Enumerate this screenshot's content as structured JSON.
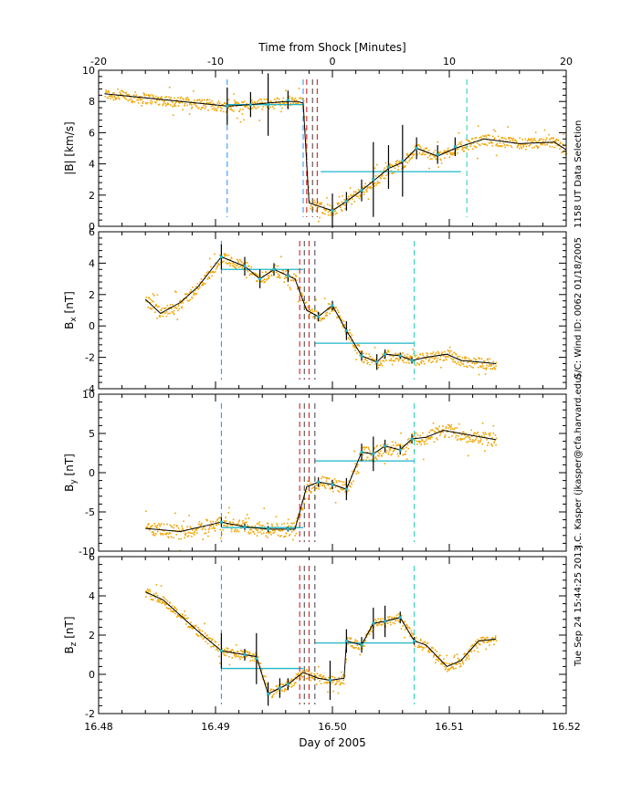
{
  "figure": {
    "top_axis_title": "Time from Shock [Minutes]",
    "bottom_axis_title": "Day of 2005",
    "side_annotations": [
      "1158 UT Data Selection",
      "S/C: Wind ID: 0062 01/18/2005",
      "J.C. Kasper (jkasper@cfa.harvard.edu)",
      "Tue Sep 24 15:44:25 2013"
    ]
  },
  "colors": {
    "raw": "#f0a500",
    "fit": "#000000",
    "region": "#1fb6c8",
    "upstream_marker": "#1e90ff",
    "downstream_marker": "#1fd0b0",
    "shock_red": "#d42020",
    "shock_dark": "#505050"
  },
  "chart_data": [
    {
      "type": "line",
      "panel": "speed",
      "ylabel": "|B| [km/s]",
      "ylim": [
        0,
        10
      ],
      "yticks": [
        0,
        2,
        4,
        6,
        8,
        10
      ],
      "xlim": [
        16.48,
        16.52
      ],
      "top_xlim": [
        -20,
        20
      ],
      "top_xticks": [
        -20,
        -10,
        0,
        10,
        20
      ],
      "fit_series": [
        [
          16.4805,
          8.5
        ],
        [
          16.491,
          7.7
        ],
        [
          16.493,
          7.8
        ],
        [
          16.4945,
          7.9
        ],
        [
          16.496,
          8.0
        ],
        [
          16.497,
          8.0
        ],
        [
          16.4975,
          7.9
        ],
        [
          16.498,
          1.5
        ],
        [
          16.5,
          1.0
        ],
        [
          16.5012,
          1.6
        ],
        [
          16.5025,
          2.3
        ],
        [
          16.5035,
          2.9
        ],
        [
          16.5048,
          3.7
        ],
        [
          16.506,
          4.1
        ],
        [
          16.5072,
          5.0
        ],
        [
          16.509,
          4.5
        ],
        [
          16.5105,
          5.0
        ],
        [
          16.513,
          5.6
        ],
        [
          16.516,
          5.3
        ],
        [
          16.519,
          5.4
        ],
        [
          16.52,
          4.9
        ]
      ],
      "error_bars": [
        [
          16.491,
          7.7,
          1.2
        ],
        [
          16.493,
          7.8,
          0.8
        ],
        [
          16.4945,
          7.8,
          2.0
        ],
        [
          16.4962,
          8.1,
          0.6
        ],
        [
          16.5,
          1.0,
          1.1
        ],
        [
          16.5012,
          1.6,
          0.6
        ],
        [
          16.5025,
          2.3,
          0.7
        ],
        [
          16.5035,
          3.0,
          2.4
        ],
        [
          16.5048,
          3.8,
          1.4
        ],
        [
          16.506,
          4.2,
          2.3
        ],
        [
          16.5072,
          5.0,
          0.7
        ],
        [
          16.509,
          4.6,
          0.6
        ],
        [
          16.5105,
          5.1,
          0.6
        ]
      ],
      "upstream_region": {
        "x": [
          16.491,
          16.4975
        ],
        "value": 7.8
      },
      "downstream_region": {
        "x": [
          16.499,
          16.511
        ],
        "value": 3.5
      },
      "upstream_markers": [
        16.491,
        16.4975
      ],
      "downstream_markers": [
        16.5115
      ],
      "shock_markers": {
        "red": [
          16.4978,
          16.4987
        ],
        "dark": [
          16.4983
        ]
      },
      "raw_noise": 0.35
    },
    {
      "type": "line",
      "panel": "bx",
      "ylabel": "Bx [nT]",
      "ylabel_main": "B",
      "ylabel_sub": "x",
      "ylabel_unit": " [nT]",
      "ylim": [
        -4,
        6
      ],
      "yticks": [
        -4,
        -2,
        0,
        2,
        4,
        6
      ],
      "xlim": [
        16.48,
        16.52
      ],
      "fit_series": [
        [
          16.484,
          1.7
        ],
        [
          16.4853,
          0.8
        ],
        [
          16.487,
          1.5
        ],
        [
          16.4885,
          2.5
        ],
        [
          16.4905,
          4.4
        ],
        [
          16.4925,
          3.8
        ],
        [
          16.4938,
          3.0
        ],
        [
          16.495,
          3.6
        ],
        [
          16.4962,
          3.2
        ],
        [
          16.4968,
          3.0
        ],
        [
          16.4978,
          1.0
        ],
        [
          16.4988,
          0.6
        ],
        [
          16.5,
          1.3
        ],
        [
          16.5012,
          -0.3
        ],
        [
          16.5025,
          -1.9
        ],
        [
          16.5038,
          -2.3
        ],
        [
          16.5045,
          -1.8
        ],
        [
          16.5058,
          -1.9
        ],
        [
          16.5068,
          -2.2
        ],
        [
          16.508,
          -2.0
        ],
        [
          16.5098,
          -1.8
        ],
        [
          16.511,
          -2.2
        ],
        [
          16.514,
          -2.4
        ]
      ],
      "error_bars": [
        [
          16.4905,
          4.4,
          0.8
        ],
        [
          16.4925,
          3.8,
          0.6
        ],
        [
          16.4938,
          3.0,
          0.6
        ],
        [
          16.495,
          3.6,
          0.4
        ],
        [
          16.4962,
          3.2,
          0.4
        ],
        [
          16.4988,
          0.6,
          0.3
        ],
        [
          16.5,
          1.3,
          0.3
        ],
        [
          16.5012,
          -0.3,
          0.6
        ],
        [
          16.5025,
          -1.9,
          0.3
        ],
        [
          16.5038,
          -2.3,
          0.5
        ],
        [
          16.5045,
          -1.8,
          0.3
        ],
        [
          16.5058,
          -1.9,
          0.2
        ],
        [
          16.5068,
          -2.2,
          0.2
        ]
      ],
      "upstream_region": {
        "x": [
          16.4905,
          16.4975
        ],
        "value": 3.6
      },
      "downstream_region": {
        "x": [
          16.4985,
          16.507
        ],
        "value": -1.1
      },
      "upstream_markers": [
        16.4905
      ],
      "downstream_markers": [
        16.507
      ],
      "shock_markers": {
        "red": [
          16.4972,
          16.498
        ],
        "dark": [
          16.4976,
          16.4985
        ]
      },
      "raw_noise": 0.35
    },
    {
      "type": "line",
      "panel": "by",
      "ylabel": "By [nT]",
      "ylabel_main": "B",
      "ylabel_sub": "y",
      "ylabel_unit": " [nT]",
      "ylim": [
        -10,
        10
      ],
      "yticks": [
        -10,
        -5,
        0,
        5,
        10
      ],
      "xlim": [
        16.48,
        16.52
      ],
      "fit_series": [
        [
          16.484,
          -7.1
        ],
        [
          16.487,
          -7.5
        ],
        [
          16.4905,
          -6.3
        ],
        [
          16.4925,
          -6.9
        ],
        [
          16.4945,
          -7.2
        ],
        [
          16.4962,
          -7.2
        ],
        [
          16.4968,
          -7.2
        ],
        [
          16.4978,
          -1.8
        ],
        [
          16.4988,
          -1.2
        ],
        [
          16.5,
          -1.5
        ],
        [
          16.5012,
          -2.1
        ],
        [
          16.5025,
          2.6
        ],
        [
          16.5035,
          2.4
        ],
        [
          16.5045,
          3.4
        ],
        [
          16.5058,
          2.9
        ],
        [
          16.5068,
          4.3
        ],
        [
          16.508,
          4.5
        ],
        [
          16.5095,
          5.4
        ],
        [
          16.511,
          5.0
        ],
        [
          16.514,
          4.2
        ]
      ],
      "error_bars": [
        [
          16.4905,
          -6.3,
          0.6
        ],
        [
          16.4925,
          -6.9,
          0.4
        ],
        [
          16.4945,
          -7.2,
          0.4
        ],
        [
          16.4962,
          -7.2,
          0.3
        ],
        [
          16.4988,
          -1.2,
          0.6
        ],
        [
          16.5,
          -1.5,
          0.6
        ],
        [
          16.5012,
          -2.1,
          1.4
        ],
        [
          16.5025,
          2.6,
          1.1
        ],
        [
          16.5035,
          2.4,
          2.2
        ],
        [
          16.5045,
          3.4,
          0.8
        ],
        [
          16.5058,
          2.9,
          0.6
        ],
        [
          16.5068,
          4.3,
          0.6
        ]
      ],
      "upstream_region": {
        "x": [
          16.4905,
          16.4975
        ],
        "value": -7.0
      },
      "downstream_region": {
        "x": [
          16.4985,
          16.507
        ],
        "value": 1.5
      },
      "upstream_markers": [
        16.4905
      ],
      "downstream_markers": [
        16.507
      ],
      "shock_markers": {
        "red": [
          16.4972,
          16.498
        ],
        "dark": [
          16.4976,
          16.4985
        ]
      },
      "raw_noise": 0.45
    },
    {
      "type": "line",
      "panel": "bz",
      "ylabel": "Bz [nT]",
      "ylabel_main": "B",
      "ylabel_sub": "z",
      "ylabel_unit": " [nT]",
      "ylim": [
        -2,
        6
      ],
      "yticks": [
        -2,
        0,
        2,
        4,
        6
      ],
      "xlim": [
        16.48,
        16.52
      ],
      "fit_series": [
        [
          16.484,
          4.2
        ],
        [
          16.4855,
          3.8
        ],
        [
          16.4885,
          2.2
        ],
        [
          16.4905,
          1.2
        ],
        [
          16.4925,
          1.0
        ],
        [
          16.4935,
          0.9
        ],
        [
          16.4945,
          -1.0
        ],
        [
          16.4955,
          -0.7
        ],
        [
          16.4962,
          -0.5
        ],
        [
          16.4975,
          0.1
        ],
        [
          16.4988,
          -0.2
        ],
        [
          16.4998,
          -0.3
        ],
        [
          16.501,
          -0.2
        ],
        [
          16.5012,
          1.7
        ],
        [
          16.5025,
          1.5
        ],
        [
          16.5035,
          2.6
        ],
        [
          16.5045,
          2.7
        ],
        [
          16.5058,
          2.9
        ],
        [
          16.507,
          1.7
        ],
        [
          16.508,
          1.5
        ],
        [
          16.5098,
          0.4
        ],
        [
          16.511,
          0.7
        ],
        [
          16.5125,
          1.7
        ],
        [
          16.514,
          1.8
        ]
      ],
      "error_bars": [
        [
          16.4905,
          1.2,
          0.9
        ],
        [
          16.4925,
          1.0,
          0.3
        ],
        [
          16.4935,
          0.8,
          1.3
        ],
        [
          16.4945,
          -1.0,
          0.6
        ],
        [
          16.4955,
          -0.7,
          0.5
        ],
        [
          16.4962,
          -0.5,
          0.3
        ],
        [
          16.4998,
          -0.3,
          1.0
        ],
        [
          16.5012,
          1.7,
          0.6
        ],
        [
          16.5025,
          1.5,
          0.4
        ],
        [
          16.5035,
          2.6,
          0.8
        ],
        [
          16.5045,
          2.7,
          0.8
        ],
        [
          16.5058,
          2.9,
          0.3
        ],
        [
          16.507,
          1.7,
          0.2
        ]
      ],
      "upstream_region": {
        "x": [
          16.4905,
          16.4975
        ],
        "value": 0.3
      },
      "downstream_region": {
        "x": [
          16.4985,
          16.507
        ],
        "value": 1.6
      },
      "upstream_markers": [
        16.4905
      ],
      "downstream_markers": [
        16.507
      ],
      "shock_markers": {
        "red": [
          16.4972,
          16.498
        ],
        "dark": [
          16.4976,
          16.4985
        ]
      },
      "raw_noise": 0.3
    }
  ],
  "bottom_xticks": [
    "16.48",
    "16.49",
    "16.50",
    "16.51",
    "16.52"
  ],
  "bottom_xtick_values": [
    16.48,
    16.49,
    16.5,
    16.51,
    16.52
  ]
}
